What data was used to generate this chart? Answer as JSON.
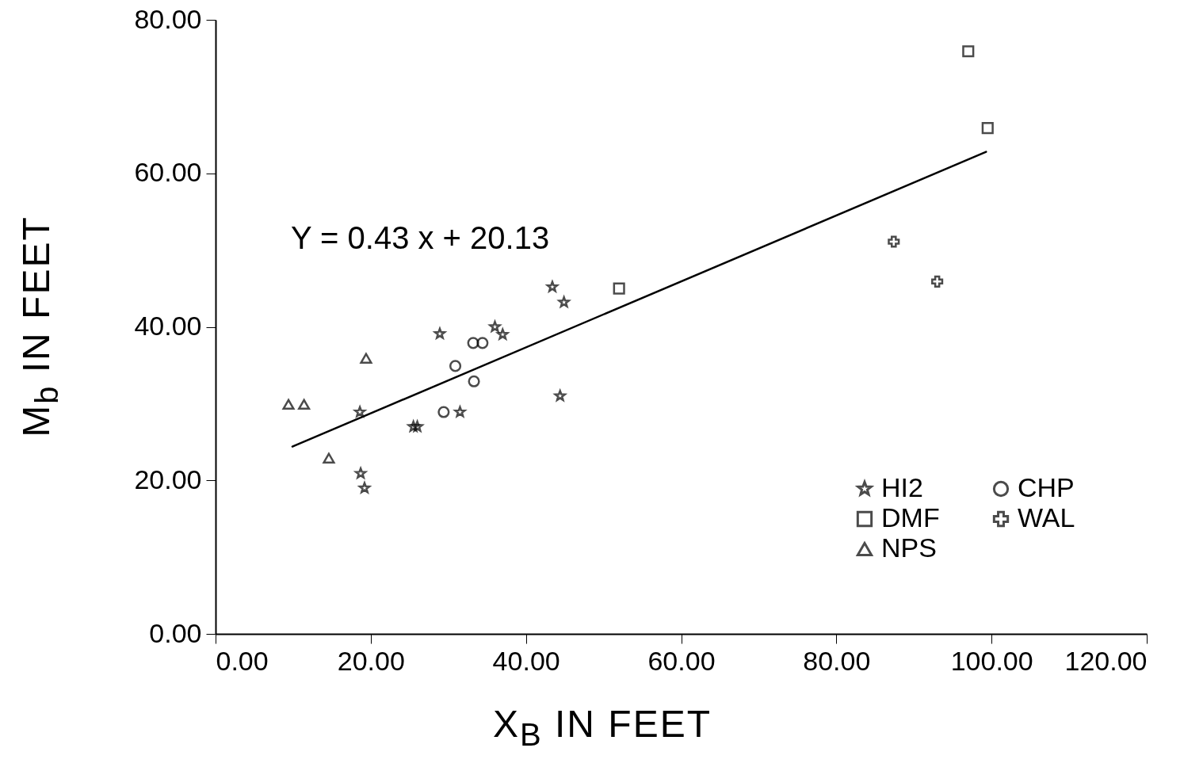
{
  "chart_data": {
    "type": "scatter",
    "xlabel": "X$_{B}$ IN FEET",
    "ylabel": "M$_{b}$ IN FEET",
    "annotations": [
      "Y = 0.43 x + 20.13"
    ],
    "xlim": [
      0,
      120
    ],
    "ylim": [
      0,
      80
    ],
    "xticks": [
      {
        "value": 0,
        "label": "0.00"
      },
      {
        "value": 20,
        "label": "20.00"
      },
      {
        "value": 40,
        "label": "40.00"
      },
      {
        "value": 60,
        "label": "60.00"
      },
      {
        "value": 80,
        "label": "80.00"
      },
      {
        "value": 100,
        "label": "100.00"
      },
      {
        "value": 120,
        "label": "120.00"
      }
    ],
    "yticks": [
      {
        "value": 0,
        "label": "0.00"
      },
      {
        "value": 20,
        "label": "20.00"
      },
      {
        "value": 40,
        "label": "40.00"
      },
      {
        "value": 60,
        "label": "60.00"
      },
      {
        "value": 80,
        "label": "80.00"
      }
    ],
    "grid": false,
    "legend": "bottom right",
    "series": [
      {
        "name": "HI2",
        "color": "#000000",
        "marker": "star",
        "x": [
          28.9,
          43.4,
          44.9,
          36.0,
          37.0,
          18.6,
          25.5,
          26.0,
          31.5,
          44.4,
          18.7,
          19.2
        ],
        "values": [
          39.1,
          45.2,
          43.2,
          40.0,
          39.0,
          28.9,
          27.0,
          27.0,
          28.9,
          31.0,
          20.9,
          19.0
        ]
      },
      {
        "name": "DMF",
        "color": "#000000",
        "marker": "square",
        "x": [
          52.0,
          97.0,
          99.5
        ],
        "values": [
          45.0,
          75.9,
          65.9
        ]
      },
      {
        "name": "NPS",
        "color": "#000000",
        "marker": "triangle",
        "x": [
          9.4,
          11.4,
          19.4,
          14.6
        ],
        "values": [
          29.9,
          29.9,
          35.9,
          22.9
        ]
      },
      {
        "name": "CHP",
        "color": "#000000",
        "marker": "circle",
        "x": [
          29.4,
          30.9,
          33.3,
          33.2,
          34.4
        ],
        "values": [
          28.9,
          34.9,
          32.9,
          37.9,
          37.9
        ]
      },
      {
        "name": "WAL",
        "color": "#000000",
        "marker": "cross",
        "x": [
          87.4,
          93.0
        ],
        "values": [
          51.1,
          45.9
        ]
      },
      {
        "type": "line",
        "color": "#000000",
        "x": [
          9.9,
          99.3
        ],
        "values": [
          24.4,
          62.8
        ]
      }
    ]
  }
}
